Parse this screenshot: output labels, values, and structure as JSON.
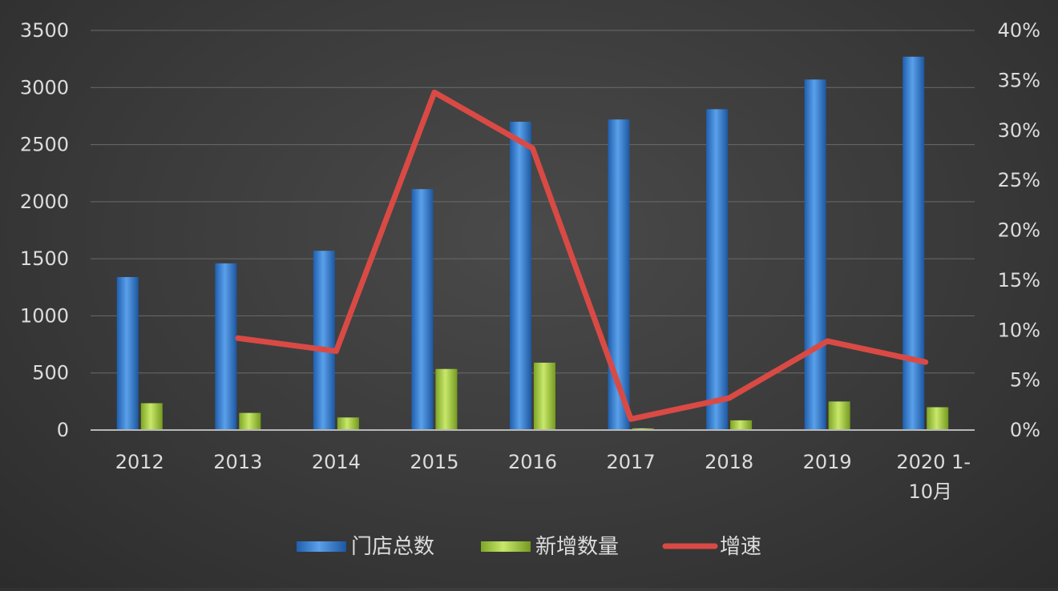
{
  "chart_data": {
    "type": "bar",
    "categories": [
      "2012",
      "2013",
      "2014",
      "2015",
      "2016",
      "2017",
      "2018",
      "2019",
      "2020 1-10月"
    ],
    "series": [
      {
        "name": "门店总数",
        "type": "bar",
        "axis": "left",
        "color": "#3f86d8",
        "values": [
          1340,
          1460,
          1570,
          2110,
          2700,
          2720,
          2810,
          3070,
          3270
        ]
      },
      {
        "name": "新增数量",
        "type": "bar",
        "axis": "left",
        "color": "#a3cc3a",
        "values": [
          235,
          150,
          110,
          535,
          590,
          15,
          85,
          250,
          200
        ]
      },
      {
        "name": "增速",
        "type": "line",
        "axis": "right",
        "color": "#d94a45",
        "values": [
          null,
          0.092,
          0.079,
          0.338,
          0.282,
          0.011,
          0.032,
          0.089,
          0.068
        ]
      }
    ],
    "y_left": {
      "min": 0,
      "max": 3500,
      "ticks": [
        "0",
        "500",
        "1000",
        "1500",
        "2000",
        "2500",
        "3000",
        "3500"
      ]
    },
    "y_right": {
      "min": 0,
      "max": 0.4,
      "ticks": [
        "0%",
        "5%",
        "10%",
        "15%",
        "20%",
        "25%",
        "30%",
        "35%",
        "40%"
      ]
    },
    "grid": true,
    "legend_position": "bottom"
  }
}
